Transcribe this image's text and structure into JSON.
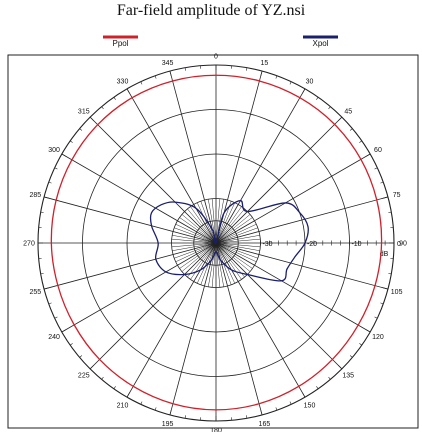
{
  "chart_data": {
    "type": "polar",
    "title": "Far-field amplitude of YZ.nsi",
    "legend": [
      {
        "name": "Ppol",
        "color": "#d0202a"
      },
      {
        "name": "Xpol",
        "color": "#1a1f6e"
      }
    ],
    "radial_unit": "dB",
    "radial_range": [
      -40,
      0
    ],
    "radial_ticks": [
      {
        "value": -30,
        "label": "-30"
      },
      {
        "value": -20,
        "label": "-20"
      },
      {
        "value": -10,
        "label": "-10"
      },
      {
        "value": 0,
        "label": "0"
      }
    ],
    "angle_labels": [
      "0",
      "15",
      "30",
      "45",
      "60",
      "75",
      "90",
      "105",
      "120",
      "135",
      "150",
      "165",
      "180",
      "195",
      "210",
      "225",
      "240",
      "255",
      "270",
      "285",
      "300",
      "315",
      "330",
      "345"
    ],
    "series": [
      {
        "name": "Ppol",
        "color": "#d0202a",
        "angles": [
          0,
          15,
          30,
          45,
          60,
          75,
          90,
          105,
          120,
          135,
          150,
          165,
          180,
          195,
          210,
          225,
          240,
          255,
          270,
          285,
          300,
          315,
          330,
          345
        ],
        "values": [
          -2.3,
          -2.3,
          -2.3,
          -2.3,
          -2.4,
          -2.6,
          -2.8,
          -3.0,
          -3.1,
          -3.0,
          -2.8,
          -2.6,
          -2.5,
          -2.6,
          -2.8,
          -3.0,
          -3.2,
          -3.2,
          -3.0,
          -2.8,
          -2.6,
          -2.4,
          -2.3,
          -2.3
        ]
      },
      {
        "name": "Xpol",
        "color": "#1a1f6e",
        "angles": [
          0,
          15,
          30,
          45,
          60,
          70,
          80,
          90,
          100,
          110,
          120,
          135,
          150,
          165,
          180,
          195,
          210,
          225,
          240,
          255,
          270,
          285,
          295,
          305,
          315,
          330,
          345
        ],
        "values": [
          -40,
          -33,
          -29,
          -30,
          -22,
          -20,
          -19,
          -20,
          -22,
          -23,
          -23,
          -30,
          -33,
          -36,
          -38,
          -36,
          -33,
          -30,
          -27,
          -26,
          -27,
          -25,
          -24,
          -25,
          -27,
          -31,
          -37
        ]
      }
    ]
  }
}
